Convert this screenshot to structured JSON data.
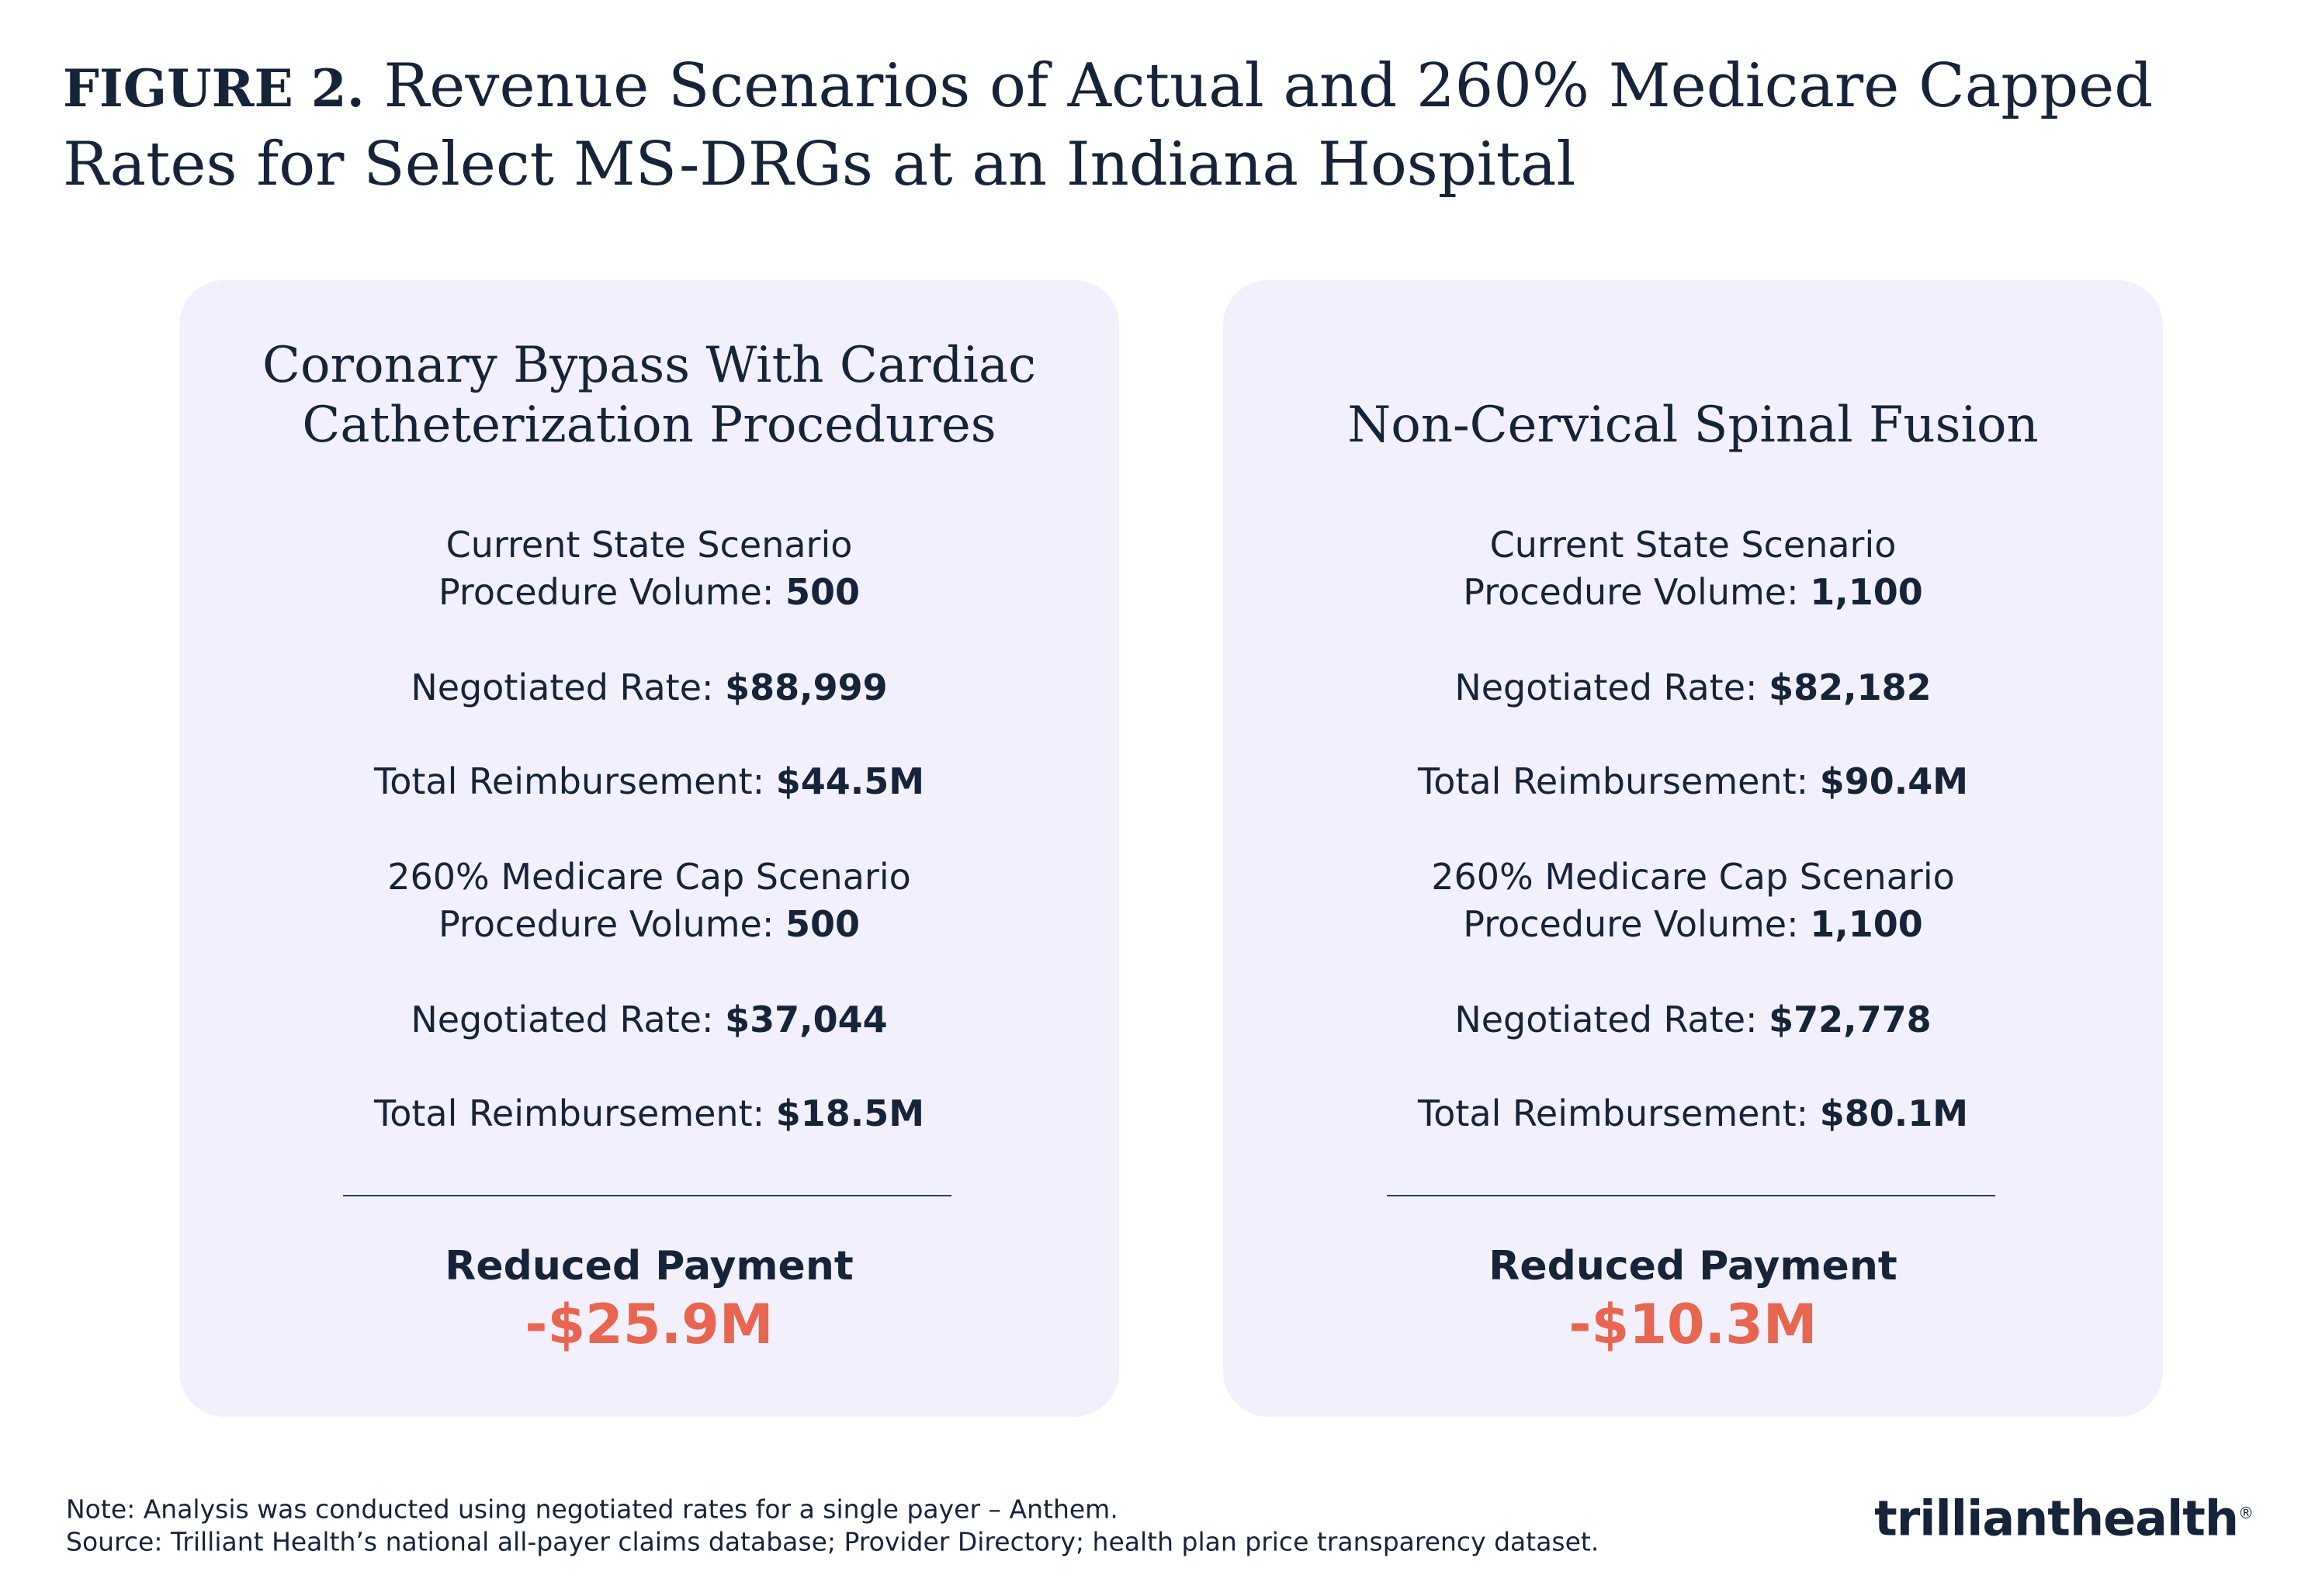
{
  "header": {
    "label": "FIGURE 2.",
    "title": "Revenue Scenarios of Actual and 260% Medicare Capped Rates for Select MS-DRGs at an Indiana Hospital"
  },
  "cards": [
    {
      "title": [
        "Coronary Bypass With Cardiac",
        "Catheterization Procedures"
      ],
      "scenarios": [
        {
          "heading": "Current State Scenario",
          "rows": [
            {
              "label": "Procedure Volume:",
              "value": "500"
            },
            {
              "label": "Negotiated Rate:",
              "value": "$88,999"
            },
            {
              "label": "Total Reimbursement:",
              "value": "$44.5M"
            }
          ]
        },
        {
          "heading": "260% Medicare Cap Scenario",
          "rows": [
            {
              "label": "Procedure Volume:",
              "value": "500"
            },
            {
              "label": "Negotiated Rate:",
              "value": "$37,044"
            },
            {
              "label": "Total Reimbursement:",
              "value": "$18.5M"
            }
          ]
        }
      ],
      "reduced_label": "Reduced Payment",
      "reduced_value": "-$25.9M"
    },
    {
      "title": [
        "Non-Cervical Spinal Fusion"
      ],
      "scenarios": [
        {
          "heading": "Current State Scenario",
          "rows": [
            {
              "label": "Procedure Volume:",
              "value": "1,100"
            },
            {
              "label": "Negotiated Rate:",
              "value": "$82,182"
            },
            {
              "label": "Total Reimbursement:",
              "value": "$90.4M"
            }
          ]
        },
        {
          "heading": "260% Medicare Cap Scenario",
          "rows": [
            {
              "label": "Procedure Volume:",
              "value": "1,100"
            },
            {
              "label": "Negotiated Rate:",
              "value": "$72,778"
            },
            {
              "label": "Total Reimbursement:",
              "value": "$80.1M"
            }
          ]
        }
      ],
      "reduced_label": "Reduced Payment",
      "reduced_value": "-$10.3M"
    }
  ],
  "footer": {
    "note": "Note: Analysis was conducted using negotiated rates for a single payer – Anthem.",
    "source": "Source: Trilliant Health’s national all-payer claims database; Provider Directory; health plan price transparency dataset.",
    "logo": [
      "trilliant",
      "health"
    ],
    "logo_mark": "®"
  }
}
